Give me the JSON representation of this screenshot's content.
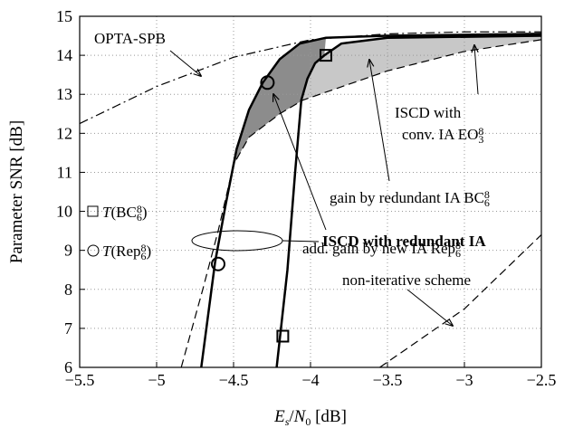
{
  "chart_data": {
    "type": "line",
    "xlim": [
      -5.5,
      -2.5
    ],
    "ylim": [
      6,
      15
    ],
    "xticks": [
      {
        "value": -5.5,
        "label": "−5.5"
      },
      {
        "value": -5,
        "label": "−5"
      },
      {
        "value": -4.5,
        "label": "−4.5"
      },
      {
        "value": -4,
        "label": "−4"
      },
      {
        "value": -3.5,
        "label": "−3.5"
      },
      {
        "value": -3,
        "label": "−3"
      },
      {
        "value": -2.5,
        "label": "−2.5"
      }
    ],
    "yticks": [
      6,
      7,
      8,
      9,
      10,
      11,
      12,
      13,
      14,
      15
    ],
    "grid": true,
    "x_label": [
      {
        "text": "E",
        "italic": true
      },
      {
        "text": "s",
        "italic": true,
        "sub": true
      },
      {
        "text": "/"
      },
      {
        "text": "N",
        "italic": true
      },
      {
        "text": "0",
        "sub": true
      },
      {
        "text": " [dB]"
      }
    ],
    "y_label": "Parameter SNR [dB]",
    "series": [
      {
        "name": "OPTA-SPB",
        "color": "#000000",
        "dash": "10,4,2,4",
        "x": [
          -5.5,
          -5,
          -4.5,
          -4,
          -3.5,
          -3,
          -2.5
        ],
        "values": [
          12.25,
          13.2,
          13.95,
          14.4,
          14.55,
          14.6,
          14.6
        ]
      },
      {
        "name": "non-iterative scheme",
        "color": "#000000",
        "dash": "9,5",
        "x": [
          -3.55,
          -3,
          -2.5
        ],
        "values": [
          6,
          7.5,
          9.4
        ]
      },
      {
        "color": "#000000",
        "dash": "9,5",
        "x": [
          -4.84,
          -4.7,
          -4.6,
          -4.5,
          -4.4,
          -4.2,
          -4.05,
          -3.5,
          -3,
          -2.5
        ],
        "values": [
          6,
          8,
          9.5,
          11.2,
          11.9,
          12.5,
          12.85,
          13.6,
          14.1,
          14.4
        ]
      },
      {
        "color": "#000000",
        "width": 2.5,
        "x": [
          -4.71,
          -4.62,
          -4.55,
          -4.48,
          -4.4,
          -4.31,
          -4.2,
          -4.07,
          -3.9,
          -3.5,
          -2.5
        ],
        "values": [
          6,
          8.7,
          10.2,
          11.6,
          12.6,
          13.3,
          13.9,
          14.3,
          14.45,
          14.5,
          14.55
        ]
      },
      {
        "color": "#000000",
        "width": 2.5,
        "x": [
          -4.22,
          -4.15,
          -4.1,
          -4.06,
          -4.02,
          -3.97,
          -3.91,
          -3.8,
          -3.5,
          -2.5
        ],
        "values": [
          6,
          8.5,
          11,
          12.85,
          13.4,
          13.8,
          14.0,
          14.3,
          14.45,
          14.5
        ]
      },
      {
        "marker": "square",
        "color": "#000000",
        "name_parts": [
          {
            "text": "T",
            "italic": true
          },
          {
            "text": "(BC"
          },
          {
            "text": "6",
            "sub": true
          },
          {
            "text": "8",
            "sup": true,
            "stack": true
          },
          {
            "text": ")"
          }
        ],
        "x": [
          -4.18,
          -3.9
        ],
        "values": [
          6.8,
          14.0
        ]
      },
      {
        "marker": "circle",
        "color": "#000000",
        "name_parts": [
          {
            "text": "T",
            "italic": true
          },
          {
            "text": "(Rep"
          },
          {
            "text": "6",
            "sub": true
          },
          {
            "text": "8",
            "sup": true,
            "stack": true
          },
          {
            "text": ")"
          }
        ],
        "x": [
          -4.6,
          -4.28
        ],
        "values": [
          8.65,
          13.3
        ]
      }
    ],
    "fills": [
      "#8c8c8c",
      "#c8c8c8"
    ],
    "annotations": [
      [
        {
          "text": "ISCD with"
        }
      ],
      [
        {
          "text": "conv. IA EO"
        },
        {
          "text": "3",
          "sub": true
        },
        {
          "text": "8",
          "sup": true,
          "stack": true
        }
      ],
      [
        {
          "text": "gain by redundant IA BC"
        },
        {
          "text": "6",
          "sub": true
        },
        {
          "text": "8",
          "sup": true,
          "stack": true
        }
      ],
      [
        {
          "text": "add. gain by new IA Rep"
        },
        {
          "text": "6",
          "sub": true
        },
        {
          "text": "8",
          "sup": true,
          "stack": true
        }
      ],
      [
        {
          "text": "ISCD with redundant IA",
          "bold": true
        }
      ]
    ]
  }
}
